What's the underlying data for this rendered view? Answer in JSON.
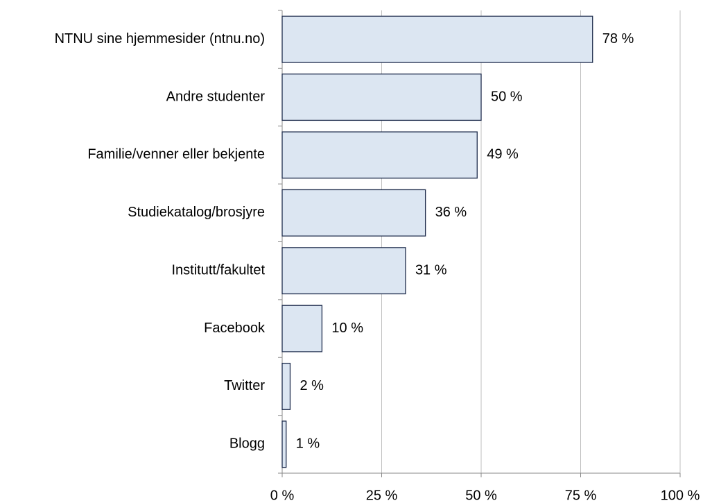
{
  "chart_data": {
    "type": "bar",
    "orientation": "horizontal",
    "categories": [
      "NTNU sine hjemmesider (ntnu.no)",
      "Andre studenter",
      "Familie/venner eller bekjente",
      "Studiekatalog/brosjyre",
      "Institutt/fakultet",
      "Facebook",
      "Twitter",
      "Blogg"
    ],
    "values": [
      78,
      50,
      49,
      36,
      31,
      10,
      2,
      1
    ],
    "value_labels": [
      "78 %",
      "50 %",
      "49 %",
      "36 %",
      "31 %",
      "10 %",
      "2 %",
      "1 %"
    ],
    "color": "#dce6f2",
    "edge_color": "#1f2d4d",
    "xlim": [
      0,
      100
    ],
    "xticks": [
      {
        "value": 0,
        "label": "0 %"
      },
      {
        "value": 25,
        "label": "25 %"
      },
      {
        "value": 50,
        "label": "50 %"
      },
      {
        "value": 75,
        "label": "75 %"
      },
      {
        "value": 100,
        "label": "100 %"
      }
    ],
    "grid": true
  }
}
